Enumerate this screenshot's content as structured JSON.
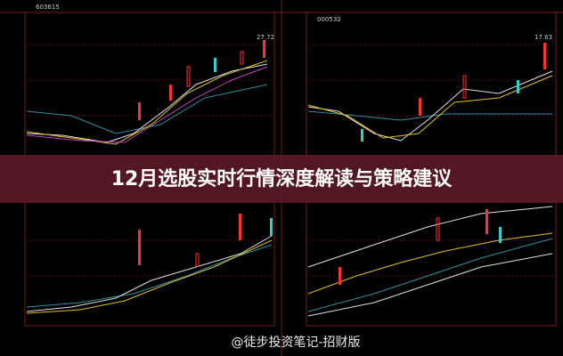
{
  "panels": [
    {
      "code": "603615",
      "price": "27.72"
    },
    {
      "code": "000532",
      "price": "17.63"
    }
  ],
  "banner": {
    "title": "12月选股实时行情深度解读与策略建议"
  },
  "watermark": "@徒步投资笔记-招财版"
}
